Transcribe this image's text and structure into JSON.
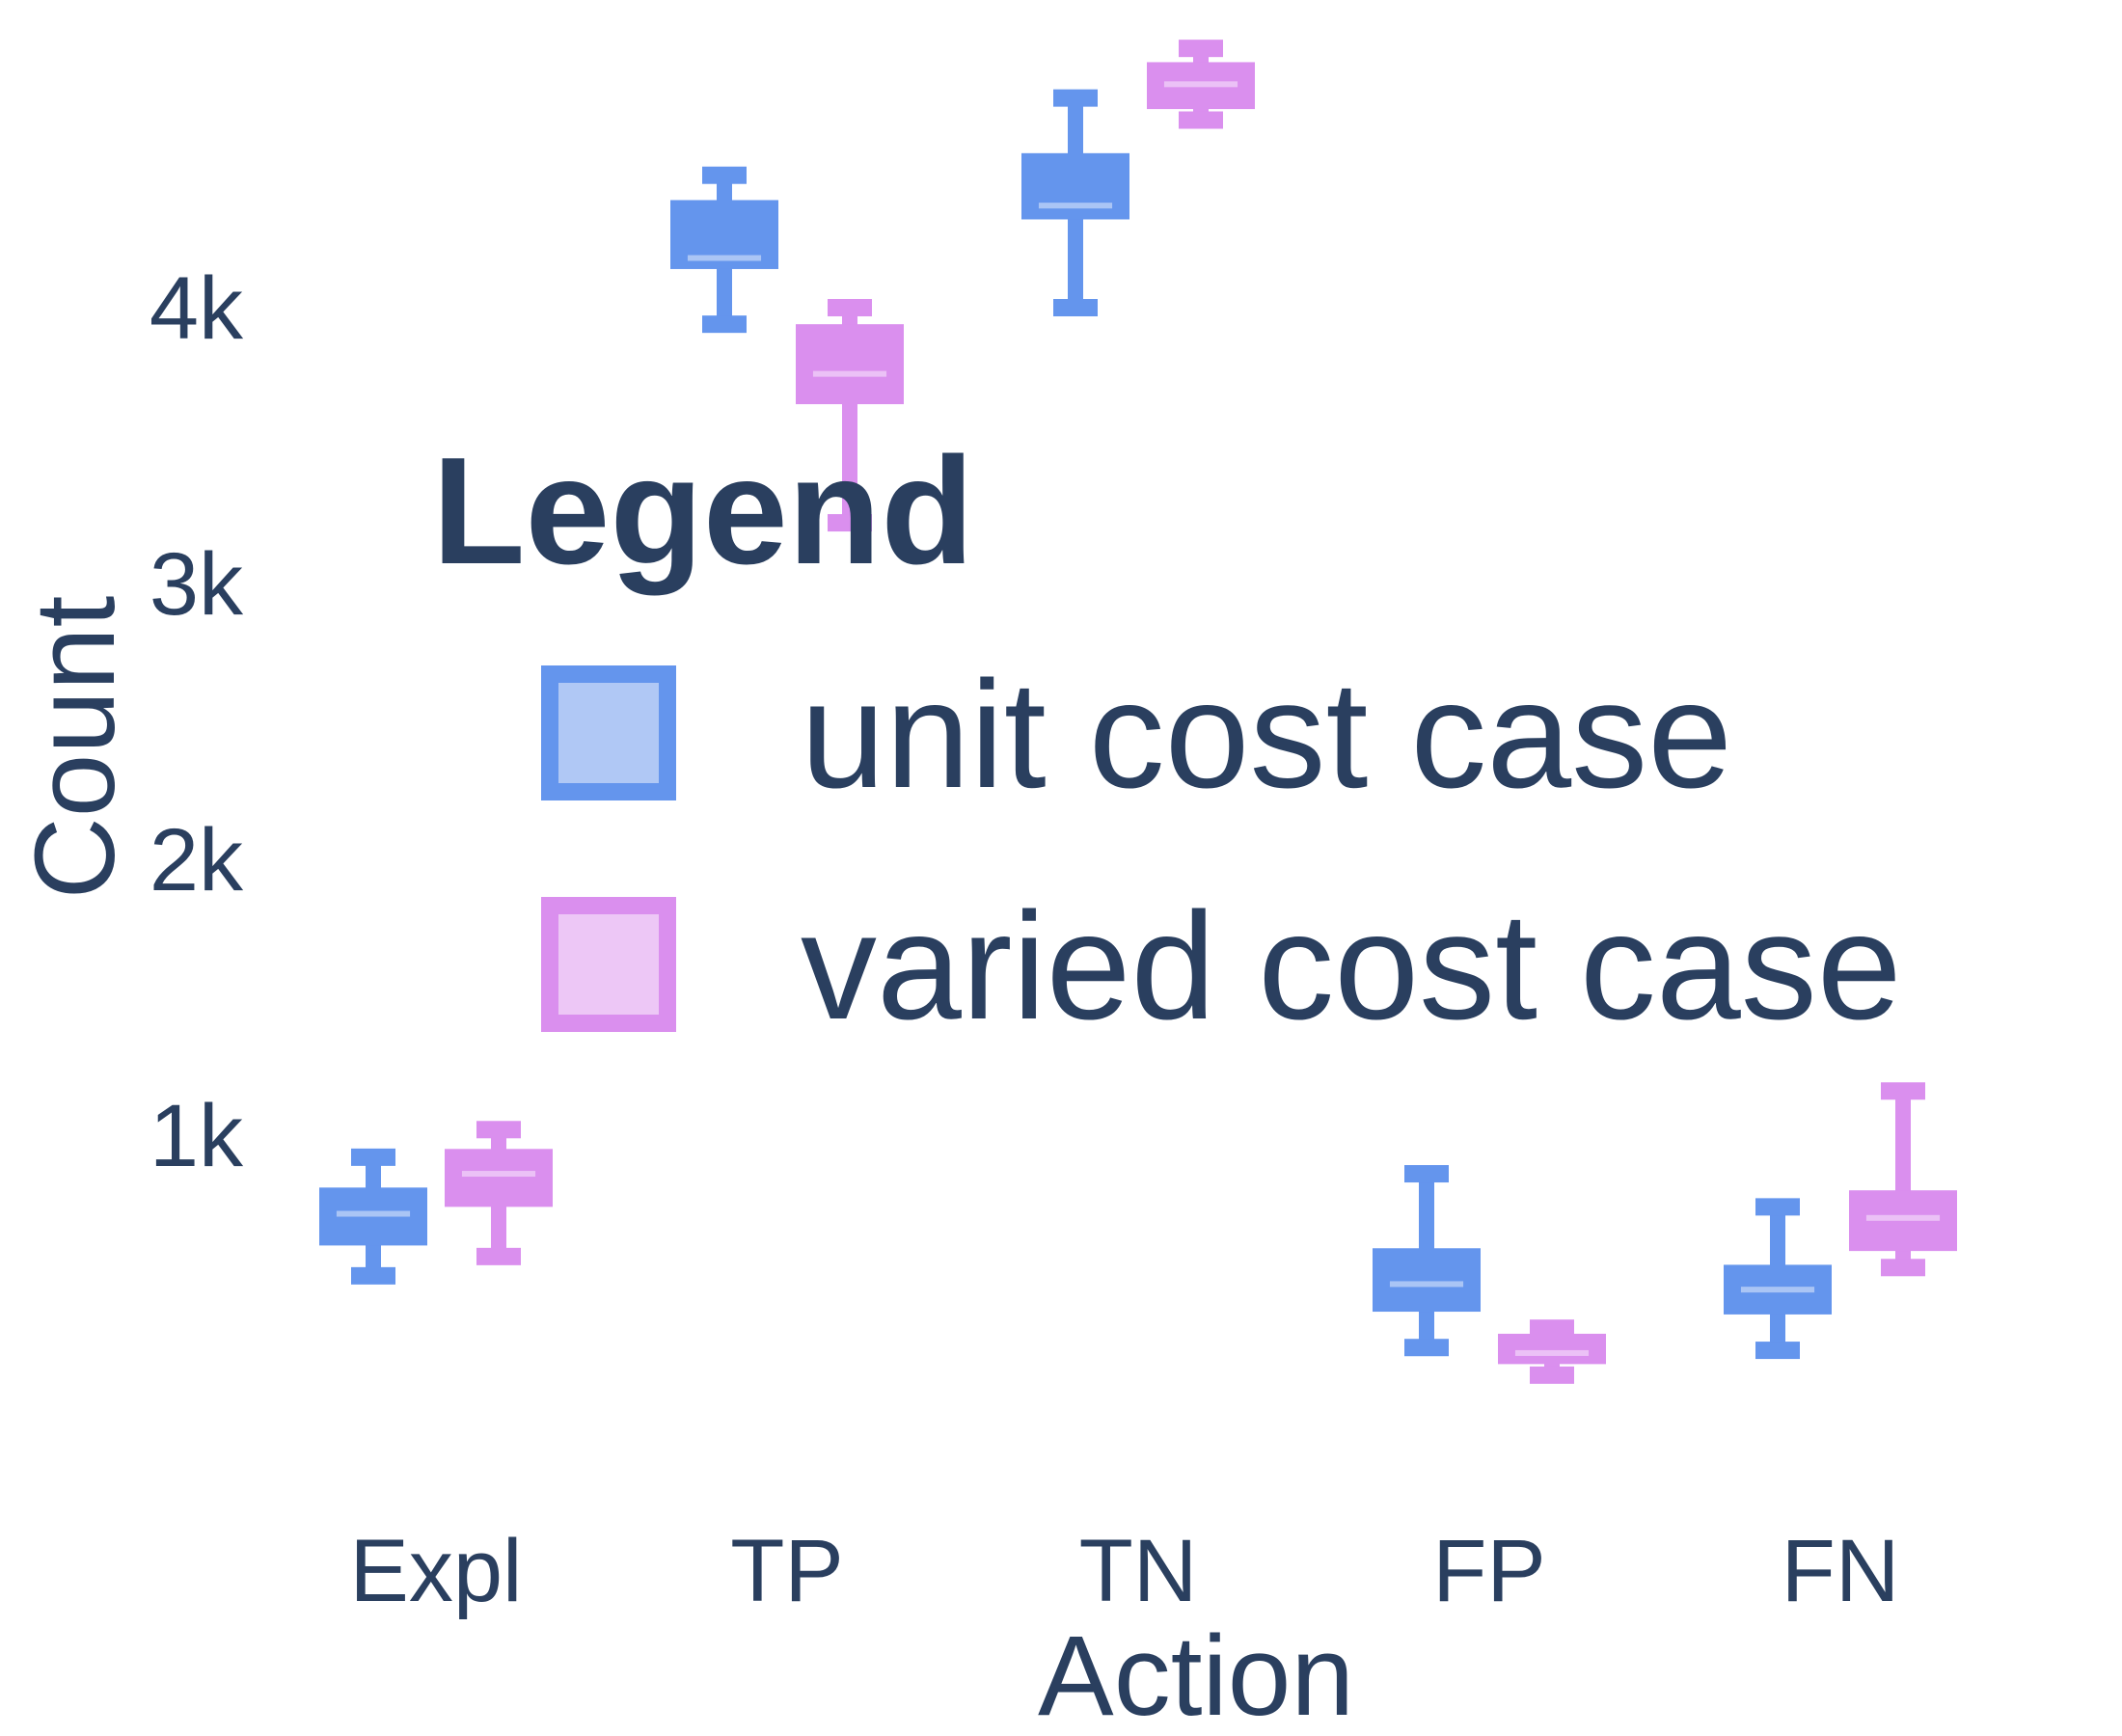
{
  "chart_data": {
    "type": "box",
    "xlabel": "Action",
    "ylabel": "Count",
    "categories": [
      "Expl",
      "TP",
      "TN",
      "FP",
      "FN"
    ],
    "ylim": [
      0,
      4900
    ],
    "yticks": [
      {
        "value": 1000,
        "label": "1k"
      },
      {
        "value": 2000,
        "label": "2k"
      },
      {
        "value": 3000,
        "label": "3k"
      },
      {
        "value": 4000,
        "label": "4k"
      }
    ],
    "legend": {
      "title": "Legend",
      "placement": "center",
      "entries": [
        "unit cost case",
        "varied cost case"
      ]
    },
    "series": [
      {
        "name": "unit cost case",
        "color": "#6495ed",
        "fill": "#6495ed",
        "boxes": [
          {
            "category": "Expl",
            "min": 490,
            "q1": 600,
            "median": 715,
            "q3": 810,
            "max": 920
          },
          {
            "category": "TP",
            "min": 3940,
            "q1": 4140,
            "median": 4180,
            "q3": 4390,
            "max": 4480
          },
          {
            "category": "TN",
            "min": 4000,
            "q1": 4320,
            "median": 4370,
            "q3": 4560,
            "max": 4760
          },
          {
            "category": "FP",
            "min": 230,
            "q1": 360,
            "median": 460,
            "q3": 590,
            "max": 860
          },
          {
            "category": "FN",
            "min": 220,
            "q1": 350,
            "median": 440,
            "q3": 530,
            "max": 740
          }
        ]
      },
      {
        "name": "varied cost case",
        "color": "#da8fee",
        "fill": "#da8fee",
        "boxes": [
          {
            "category": "Expl",
            "min": 560,
            "q1": 740,
            "median": 860,
            "q3": 950,
            "max": 1020
          },
          {
            "category": "TP",
            "min": 3220,
            "q1": 3650,
            "median": 3760,
            "q3": 3940,
            "max": 4000
          },
          {
            "category": "TN",
            "min": 4680,
            "q1": 4720,
            "median": 4810,
            "q3": 4890,
            "max": 4940
          },
          {
            "category": "FP",
            "min": 130,
            "q1": 170,
            "median": 210,
            "q3": 280,
            "max": 300
          },
          {
            "category": "FN",
            "min": 520,
            "q1": 580,
            "median": 700,
            "q3": 800,
            "max": 1160
          }
        ]
      }
    ]
  }
}
